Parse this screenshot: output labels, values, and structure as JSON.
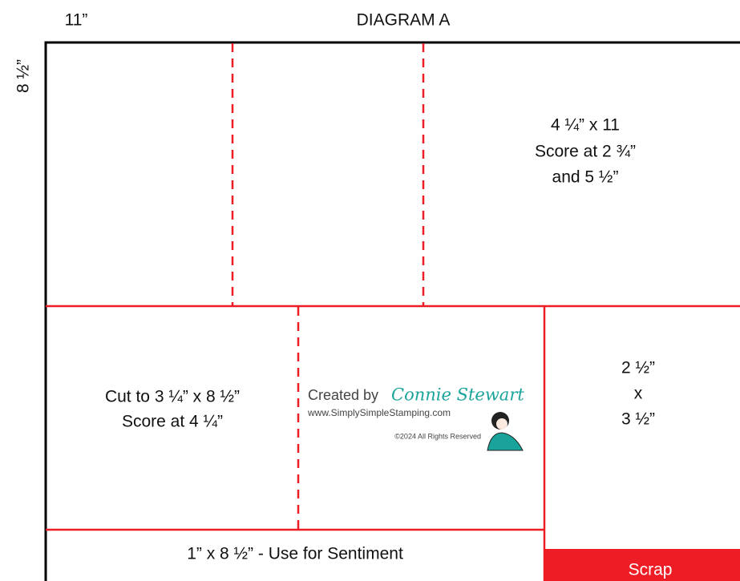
{
  "header": {
    "width_label": "11”",
    "title": "DIAGRAM A",
    "height_label": "8 ½”"
  },
  "panels": [
    {
      "lines": [
        "4 ¼” x 11",
        "Score at 2 ¾”",
        "and 5 ½”"
      ]
    },
    {
      "lines": [
        "Cut to 3 ¼” x 8 ½”",
        "Score at 4 ¼”"
      ]
    },
    {
      "lines": [
        "2 ½”",
        "x",
        "3 ½”"
      ]
    },
    {
      "lines": [
        "1” x 8 ½” - Use for Sentiment"
      ]
    },
    {
      "lines": [
        "Scrap"
      ]
    }
  ],
  "watermark": {
    "created_by": "Created by",
    "name": "Connie Stewart",
    "url": "www.SimplySimpleStamping.com",
    "copyright": "©2024 All Rights Reserved"
  }
}
